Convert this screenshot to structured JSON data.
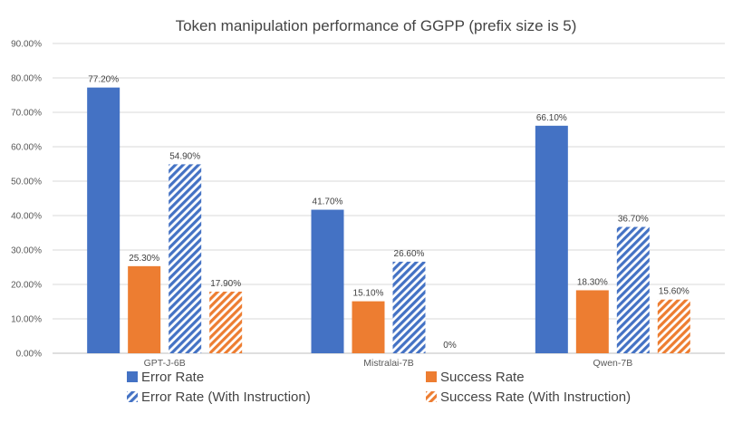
{
  "chart_data": {
    "type": "bar",
    "title": "Token manipulation performance of GGPP (prefix size is 5)",
    "xlabel": "",
    "ylabel": "",
    "categories": [
      "GPT-J-6B",
      "Mistralai-7B",
      "Qwen-7B"
    ],
    "ylim": [
      0,
      90
    ],
    "yticks": [
      0,
      10,
      20,
      30,
      40,
      50,
      60,
      70,
      80,
      90
    ],
    "ytick_labels": [
      "0.00%",
      "10.00%",
      "20.00%",
      "30.00%",
      "40.00%",
      "50.00%",
      "60.00%",
      "70.00%",
      "80.00%",
      "90.00%"
    ],
    "grid": true,
    "legend_position": "bottom",
    "series": [
      {
        "name": "Error Rate",
        "color": "#4472C4",
        "pattern": "solid",
        "values": [
          77.2,
          41.7,
          66.1
        ],
        "labels": [
          "77.20%",
          "41.70%",
          "66.10%"
        ]
      },
      {
        "name": "Success Rate",
        "color": "#ED7D31",
        "pattern": "solid",
        "values": [
          25.3,
          15.1,
          18.3
        ],
        "labels": [
          "25.30%",
          "15.10%",
          "18.30%"
        ]
      },
      {
        "name": "Error Rate (With Instruction)",
        "color": "#4472C4",
        "pattern": "hatch",
        "values": [
          54.9,
          26.6,
          36.7
        ],
        "labels": [
          "54.90%",
          "26.60%",
          "36.70%"
        ]
      },
      {
        "name": "Success Rate (With Instruction)",
        "color": "#ED7D31",
        "pattern": "hatch",
        "values": [
          17.9,
          0,
          15.6
        ],
        "labels": [
          "17.90%",
          "0%",
          "15.60%"
        ]
      }
    ]
  }
}
